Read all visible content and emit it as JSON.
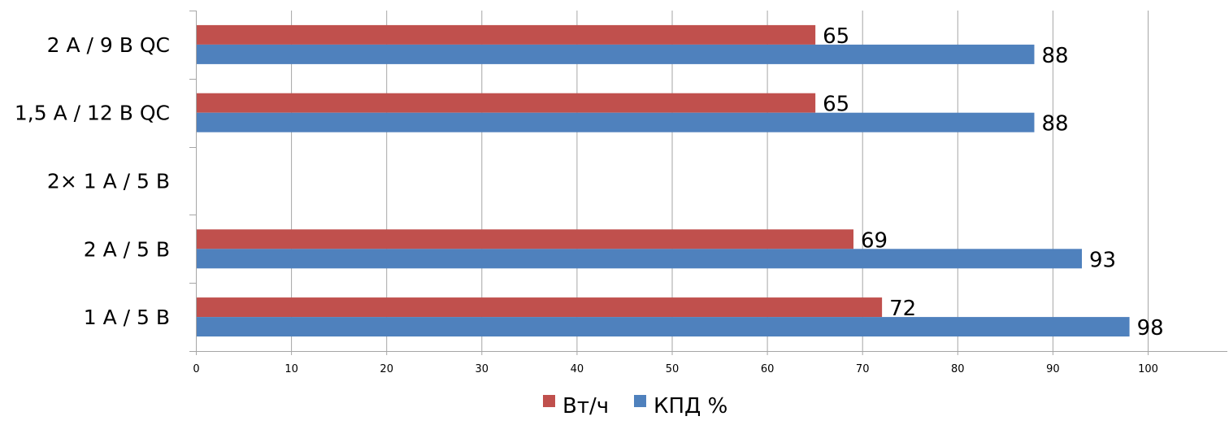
{
  "chart_data": {
    "type": "bar",
    "orientation": "horizontal",
    "categories": [
      "1 А / 5 В",
      "2 А / 5 В",
      "2× 1 А / 5 В",
      "1,5 А / 12 В QC",
      "2 А / 9 В QC"
    ],
    "series": [
      {
        "name": "Вт/ч",
        "color": "#c0504d",
        "values": [
          72,
          69,
          null,
          65,
          65
        ]
      },
      {
        "name": "КПД %",
        "color": "#4f81bd",
        "values": [
          98,
          93,
          null,
          88,
          88
        ]
      }
    ],
    "xlim": [
      0,
      110
    ],
    "x_ticks": [
      0,
      10,
      20,
      30,
      40,
      50,
      60,
      70,
      80,
      90,
      100
    ],
    "grid": true,
    "data_labels": true,
    "legend": "bottom"
  }
}
